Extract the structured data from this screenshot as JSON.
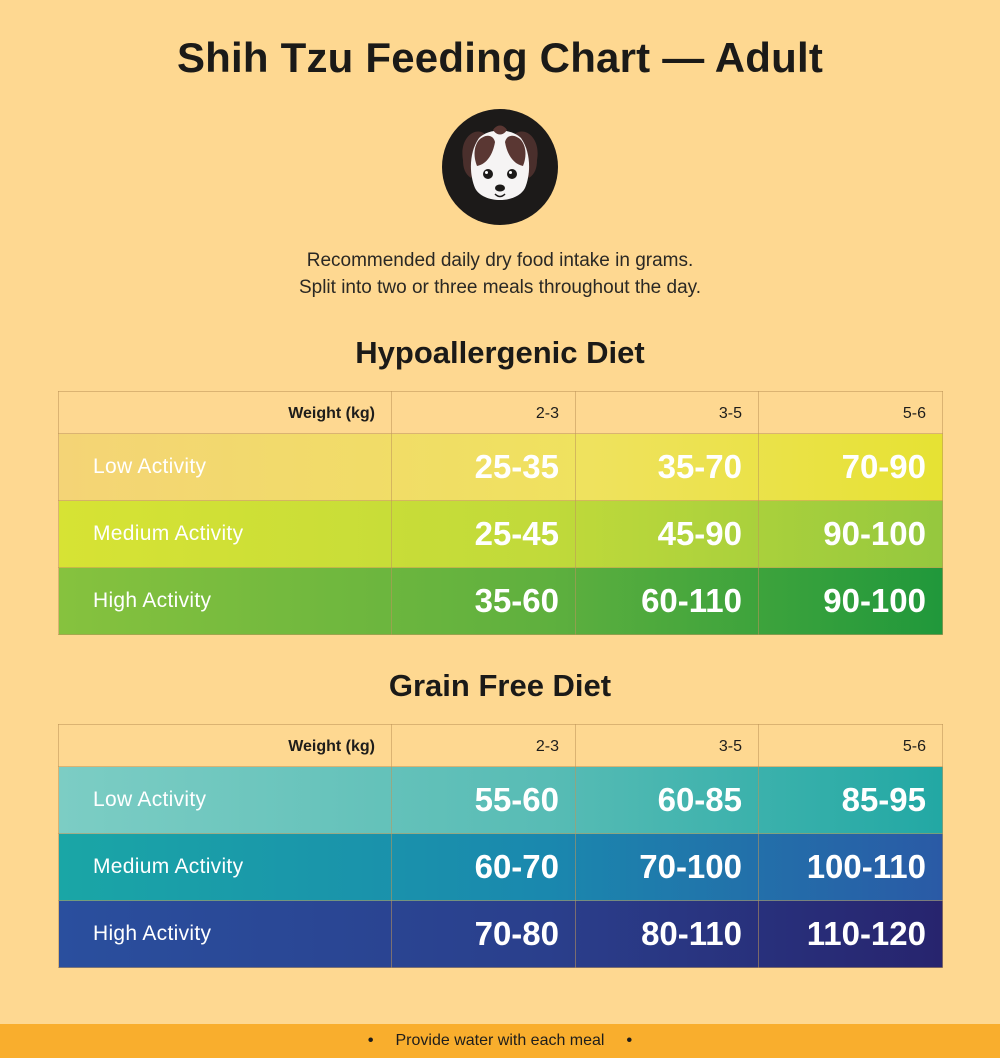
{
  "title": "Shih Tzu Feeding Chart — Adult",
  "subtitle_line1": "Recommended daily dry food intake in grams.",
  "subtitle_line2": "Split into two or three meals throughout the day.",
  "icons": {
    "avatar": "shih-tzu-dog-face-icon"
  },
  "colors": {
    "background": "#fed891",
    "footer": "#f9ae2d",
    "hypo_low": "#f2e55f",
    "hypo_medium": "#c3dc3c",
    "hypo_high": "#52ac3c",
    "grain_low": "#6cc6bc",
    "grain_medium": "#1a98a8",
    "grain_high": "#2a3c8e"
  },
  "chart_data": [
    {
      "type": "table",
      "title": "Hypoallergenic Diet",
      "header_label": "Weight (kg)",
      "columns": [
        "2-3",
        "3-5",
        "5-6"
      ],
      "rows": [
        {
          "label": "Low Activity",
          "values": [
            "25-35",
            "35-70",
            "70-90"
          ]
        },
        {
          "label": "Medium Activity",
          "values": [
            "25-45",
            "45-90",
            "90-100"
          ]
        },
        {
          "label": "High Activity",
          "values": [
            "35-60",
            "60-110",
            "90-100"
          ]
        }
      ]
    },
    {
      "type": "table",
      "title": "Grain Free Diet",
      "header_label": "Weight (kg)",
      "columns": [
        "2-3",
        "3-5",
        "5-6"
      ],
      "rows": [
        {
          "label": "Low Activity",
          "values": [
            "55-60",
            "60-85",
            "85-95"
          ]
        },
        {
          "label": "Medium Activity",
          "values": [
            "60-70",
            "70-100",
            "100-110"
          ]
        },
        {
          "label": "High Activity",
          "values": [
            "70-80",
            "80-110",
            "110-120"
          ]
        }
      ]
    }
  ],
  "footer": {
    "text": "Provide water with each meal",
    "bullet": "•"
  }
}
